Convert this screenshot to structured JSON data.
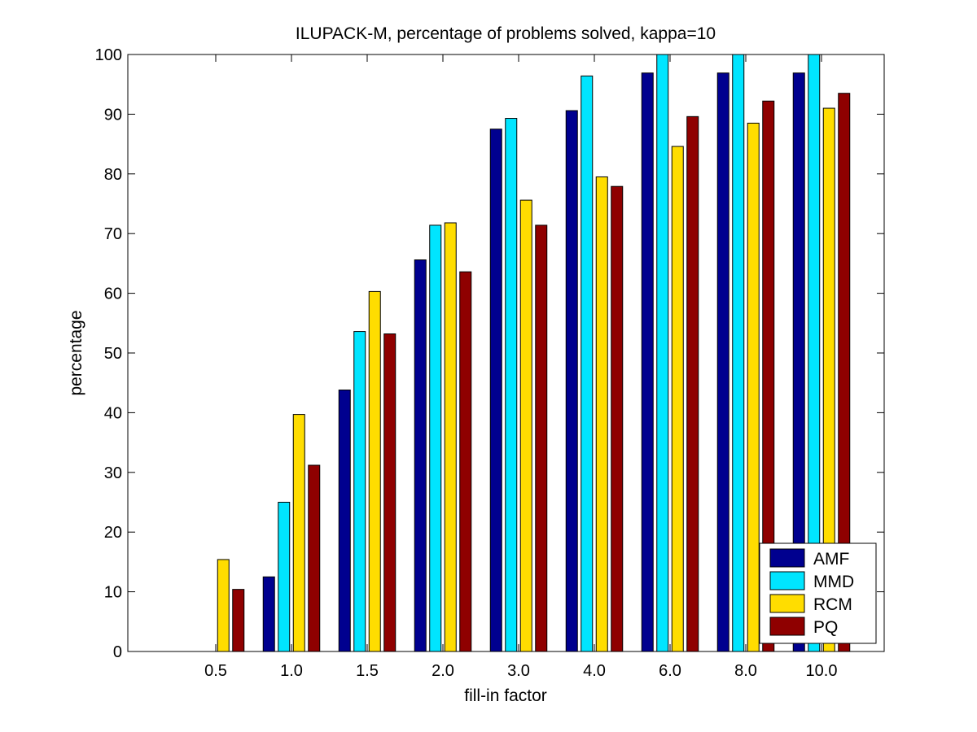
{
  "chart_data": {
    "type": "bar",
    "title": "ILUPACK-M, percentage of problems solved, kappa=10",
    "xlabel": "fill-in factor",
    "ylabel": "percentage",
    "ylim": [
      0,
      100
    ],
    "yticks": [
      0,
      10,
      20,
      30,
      40,
      50,
      60,
      70,
      80,
      90,
      100
    ],
    "categories": [
      "0.5",
      "1.0",
      "1.5",
      "2.0",
      "3.0",
      "4.0",
      "6.0",
      "8.0",
      "10.0"
    ],
    "series": [
      {
        "name": "AMF",
        "color": "#00008f",
        "values": [
          0,
          12.5,
          43.8,
          65.6,
          87.5,
          90.6,
          96.9,
          96.9,
          96.9
        ]
      },
      {
        "name": "MMD",
        "color": "#00e5ff",
        "values": [
          0,
          25.0,
          53.6,
          71.4,
          89.3,
          96.4,
          100,
          100,
          100
        ]
      },
      {
        "name": "RCM",
        "color": "#ffdd00",
        "values": [
          15.4,
          39.7,
          60.3,
          71.8,
          75.6,
          79.5,
          84.6,
          88.5,
          91.0
        ]
      },
      {
        "name": "PQ",
        "color": "#8f0000",
        "values": [
          10.4,
          31.2,
          53.2,
          63.6,
          71.4,
          77.9,
          89.6,
          92.2,
          93.5
        ]
      }
    ],
    "legend_position": "bottom-right",
    "grid": false
  }
}
